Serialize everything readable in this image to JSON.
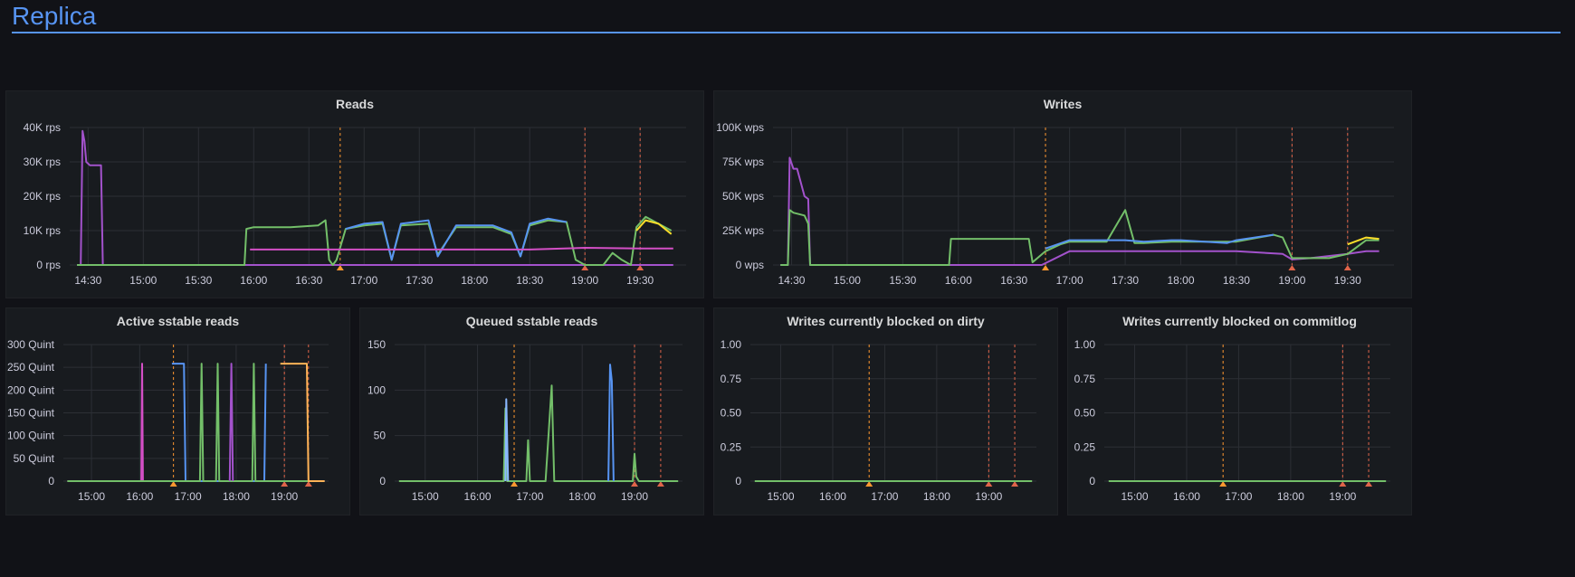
{
  "row": {
    "title": "Replica"
  },
  "colors": {
    "background": "#111217",
    "panel": "#181b1f",
    "accent": "#5794f2",
    "annotation": "#ff9830"
  },
  "panels": [
    {
      "title": "Reads",
      "chart_data": {
        "type": "line",
        "title": "Reads",
        "x_ticks": [
          "14:30",
          "15:00",
          "15:30",
          "16:00",
          "16:30",
          "17:00",
          "17:30",
          "18:00",
          "18:30",
          "19:00",
          "19:30"
        ],
        "y_ticks": [
          "0 rps",
          "10K rps",
          "20K rps",
          "30K rps",
          "40K rps"
        ],
        "ylim": [
          0,
          40000
        ],
        "annotations_x": [
          "16:47",
          "19:00",
          "19:30"
        ],
        "series": [
          {
            "color": "#a352cc",
            "x": [
              "14:24",
              "14:26",
              "14:27",
              "14:28",
              "14:29",
              "14:31",
              "14:33",
              "14:35",
              "14:37",
              "14:38",
              "15:00",
              "16:00",
              "17:00",
              "18:00",
              "19:00",
              "19:48"
            ],
            "y": [
              0,
              0,
              39000,
              36000,
              30000,
              29000,
              29000,
              29000,
              29000,
              0,
              0,
              0,
              0,
              0,
              0,
              0
            ]
          },
          {
            "color": "#73bf69",
            "x": [
              "14:24",
              "15:55",
              "15:56",
              "16:00",
              "16:20",
              "16:35",
              "16:39",
              "16:41",
              "16:43",
              "16:45",
              "16:50",
              "17:00",
              "17:10",
              "17:15",
              "17:20",
              "17:35",
              "17:40",
              "17:50",
              "18:00",
              "18:10",
              "18:20",
              "18:25",
              "18:30",
              "18:40",
              "18:50",
              "18:55",
              "19:00",
              "19:10",
              "19:15",
              "19:20",
              "19:25",
              "19:28",
              "19:33",
              "19:40",
              "19:47"
            ],
            "y": [
              0,
              0,
              10500,
              11000,
              11000,
              11500,
              13000,
              1500,
              0,
              1500,
              10500,
              11500,
              12000,
              1500,
              11500,
              12000,
              3000,
              11000,
              11000,
              11000,
              9000,
              2500,
              11500,
              13000,
              12500,
              1500,
              0,
              0,
              3500,
              1500,
              0,
              11000,
              14000,
              12000,
              10000
            ]
          },
          {
            "color": "#5794f2",
            "x": [
              "16:50",
              "17:00",
              "17:10",
              "17:15",
              "17:20",
              "17:35",
              "17:40",
              "17:50",
              "18:00",
              "18:10",
              "18:20",
              "18:25",
              "18:30",
              "18:40",
              "18:50"
            ],
            "y": [
              10500,
              12000,
              12500,
              1500,
              12000,
              13000,
              2500,
              11500,
              11500,
              11500,
              9500,
              2500,
              12000,
              13500,
              12500
            ]
          },
          {
            "color": "#d44fc6",
            "x": [
              "15:58",
              "16:00",
              "16:10",
              "16:30",
              "16:50",
              "17:00",
              "17:30",
              "18:00",
              "18:30",
              "19:00",
              "19:30",
              "19:48"
            ],
            "y": [
              4500,
              4500,
              4500,
              4500,
              4500,
              4500,
              4500,
              4500,
              4500,
              5000,
              4800,
              4800
            ]
          },
          {
            "color": "#fade2a",
            "x": [
              "19:28",
              "19:33",
              "19:40",
              "19:47"
            ],
            "y": [
              10000,
              13000,
              12000,
              9000
            ]
          }
        ]
      }
    },
    {
      "title": "Writes",
      "chart_data": {
        "type": "line",
        "title": "Writes",
        "x_ticks": [
          "14:30",
          "15:00",
          "15:30",
          "16:00",
          "16:30",
          "17:00",
          "17:30",
          "18:00",
          "18:30",
          "19:00",
          "19:30"
        ],
        "y_ticks": [
          "0 wps",
          "25K wps",
          "50K wps",
          "75K wps",
          "100K wps"
        ],
        "ylim": [
          0,
          100000
        ],
        "annotations_x": [
          "16:47",
          "19:00",
          "19:30"
        ],
        "series": [
          {
            "color": "#a352cc",
            "x": [
              "14:24",
              "14:28",
              "14:29",
              "14:31",
              "14:33",
              "14:37",
              "14:39",
              "14:40",
              "16:00",
              "16:45",
              "17:00",
              "17:30",
              "18:00",
              "18:30",
              "18:55",
              "19:00",
              "19:10",
              "19:30",
              "19:40",
              "19:47"
            ],
            "y": [
              0,
              0,
              78000,
              70000,
              70000,
              50000,
              48000,
              0,
              0,
              0,
              10000,
              10000,
              10000,
              10000,
              8000,
              4000,
              5000,
              8000,
              10000,
              10000
            ]
          },
          {
            "color": "#73bf69",
            "x": [
              "14:24",
              "14:28",
              "14:29",
              "14:31",
              "14:37",
              "14:39",
              "14:40",
              "15:55",
              "15:56",
              "16:00",
              "16:10",
              "16:30",
              "16:38",
              "16:40",
              "16:47",
              "16:55",
              "17:00",
              "17:20",
              "17:30",
              "17:35",
              "17:40",
              "17:55",
              "18:00",
              "18:25",
              "18:30",
              "18:50",
              "18:55",
              "19:00",
              "19:10",
              "19:20",
              "19:30",
              "19:40",
              "19:47"
            ],
            "y": [
              0,
              0,
              40000,
              38000,
              36000,
              30000,
              0,
              0,
              19000,
              19000,
              19000,
              19000,
              19000,
              2000,
              10000,
              15000,
              17000,
              17000,
              40000,
              16000,
              16000,
              17000,
              17000,
              17000,
              17000,
              22000,
              20000,
              5000,
              5000,
              5000,
              8000,
              18000,
              18000
            ]
          },
          {
            "color": "#5794f2",
            "x": [
              "16:47",
              "17:00",
              "17:20",
              "17:30",
              "17:40",
              "17:55",
              "18:00",
              "18:25",
              "18:30",
              "18:50"
            ],
            "y": [
              12000,
              18000,
              18000,
              18000,
              17000,
              18000,
              18000,
              16000,
              18000,
              22000
            ]
          },
          {
            "color": "#fade2a",
            "x": [
              "19:30",
              "19:40",
              "19:47"
            ],
            "y": [
              15000,
              20000,
              19000
            ]
          }
        ]
      }
    },
    {
      "title": "Active sstable reads",
      "chart_data": {
        "type": "line",
        "title": "Active sstable reads",
        "x_ticks": [
          "15:00",
          "16:00",
          "17:00",
          "18:00",
          "19:00"
        ],
        "y_ticks": [
          "0",
          "50 Quint",
          "100 Quint",
          "150 Quint",
          "200 Quint",
          "250 Quint",
          "300 Quint"
        ],
        "ylim": [
          0,
          300
        ],
        "annotations_x": [
          "16:42",
          "19:00",
          "19:30"
        ],
        "series": [
          {
            "color": "#d44fc6",
            "x": [
              "14:30",
              "16:02",
              "16:03",
              "16:04",
              "19:50"
            ],
            "y": [
              0,
              0,
              258,
              0,
              0
            ]
          },
          {
            "color": "#5794f2",
            "x": [
              "16:40",
              "16:55",
              "16:57",
              "18:35",
              "18:37"
            ],
            "y": [
              258,
              258,
              0,
              0,
              258
            ]
          },
          {
            "color": "#73bf69",
            "x": [
              "14:30",
              "17:15",
              "17:17",
              "17:19",
              "17:35",
              "17:37",
              "17:39",
              "18:20",
              "18:22",
              "18:24",
              "19:50"
            ],
            "y": [
              0,
              0,
              258,
              0,
              0,
              258,
              0,
              0,
              258,
              0,
              0
            ]
          },
          {
            "color": "#a352cc",
            "x": [
              "17:52",
              "17:54",
              "17:56"
            ],
            "y": [
              0,
              258,
              0
            ]
          },
          {
            "color": "#ffb357",
            "x": [
              "18:55",
              "19:05",
              "19:28",
              "19:30",
              "19:50"
            ],
            "y": [
              258,
              258,
              258,
              0,
              0
            ]
          }
        ]
      }
    },
    {
      "title": "Queued sstable reads",
      "chart_data": {
        "type": "line",
        "title": "Queued sstable reads",
        "x_ticks": [
          "15:00",
          "16:00",
          "17:00",
          "18:00",
          "19:00"
        ],
        "y_ticks": [
          "0",
          "50",
          "100",
          "150"
        ],
        "ylim": [
          0,
          150
        ],
        "annotations_x": [
          "16:42",
          "19:00",
          "19:30"
        ],
        "series": [
          {
            "color": "#73bf69",
            "x": [
              "14:30",
              "16:30",
              "16:32",
              "16:34",
              "16:56",
              "16:58",
              "17:00",
              "17:18",
              "17:22",
              "17:25",
              "17:28",
              "18:58",
              "19:00",
              "19:02",
              "19:05",
              "19:50"
            ],
            "y": [
              0,
              0,
              80,
              0,
              0,
              45,
              0,
              0,
              60,
              105,
              0,
              0,
              30,
              5,
              0,
              0
            ]
          },
          {
            "color": "#5794f2",
            "x": [
              "18:30",
              "18:32",
              "18:34",
              "18:36"
            ],
            "y": [
              0,
              128,
              110,
              0
            ]
          },
          {
            "color": "#8ab8ff",
            "x": [
              "16:32",
              "16:33",
              "16:35"
            ],
            "y": [
              0,
              90,
              0
            ]
          }
        ]
      }
    },
    {
      "title": "Writes currently blocked on dirty",
      "chart_data": {
        "type": "line",
        "title": "Writes currently blocked on dirty",
        "x_ticks": [
          "15:00",
          "16:00",
          "17:00",
          "18:00",
          "19:00"
        ],
        "y_ticks": [
          "0",
          "0.25",
          "0.50",
          "0.75",
          "1.00"
        ],
        "ylim": [
          0,
          1
        ],
        "annotations_x": [
          "16:42",
          "19:00",
          "19:30"
        ],
        "series": [
          {
            "color": "#73bf69",
            "x": [
              "14:30",
              "19:50"
            ],
            "y": [
              0,
              0
            ]
          }
        ]
      }
    },
    {
      "title": "Writes currently blocked on commitlog",
      "chart_data": {
        "type": "line",
        "title": "Writes currently blocked on commitlog",
        "x_ticks": [
          "15:00",
          "16:00",
          "17:00",
          "18:00",
          "19:00"
        ],
        "y_ticks": [
          "0",
          "0.25",
          "0.50",
          "0.75",
          "1.00"
        ],
        "ylim": [
          0,
          1
        ],
        "annotations_x": [
          "16:42",
          "19:00",
          "19:30"
        ],
        "series": [
          {
            "color": "#73bf69",
            "x": [
              "14:30",
              "19:50"
            ],
            "y": [
              0,
              0
            ]
          }
        ]
      }
    }
  ]
}
